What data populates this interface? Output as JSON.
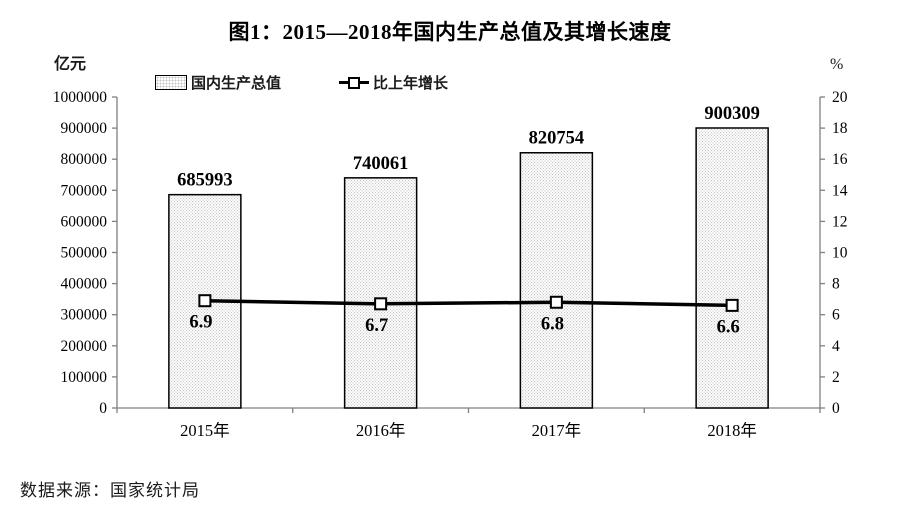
{
  "title": "图1：2015—2018年国内生产总值及其增长速度",
  "source_note": "数据来源：国家统计局",
  "left_axis_unit": "亿元",
  "right_axis_unit": "%",
  "legend": {
    "bars_label": "国内生产总值",
    "line_label": "比上年增长"
  },
  "chart_data": {
    "type": "bar",
    "subtype": "bar+line combo",
    "title": "图1：2015—2018年国内生产总值及其增长速度",
    "categories": [
      "2015年",
      "2016年",
      "2017年",
      "2018年"
    ],
    "series": [
      {
        "name": "国内生产总值",
        "type": "bar",
        "axis": "left",
        "values": [
          685993,
          740061,
          820754,
          900309
        ]
      },
      {
        "name": "比上年增长",
        "type": "line",
        "axis": "right",
        "values": [
          6.9,
          6.7,
          6.8,
          6.6
        ]
      }
    ],
    "left_axis": {
      "label": "亿元",
      "min": 0,
      "max": 1000000,
      "step": 100000
    },
    "right_axis": {
      "label": "%",
      "min": 0,
      "max": 20,
      "step": 2
    },
    "legend_position": "top",
    "grid": false
  },
  "colors": {
    "background": "#ffffff",
    "axis_line": "#808080",
    "bar_border": "#000000",
    "bar_fill_dots": "#c4c4c4",
    "line": "#000000",
    "marker_fill": "#ffffff",
    "text": "#000000"
  }
}
